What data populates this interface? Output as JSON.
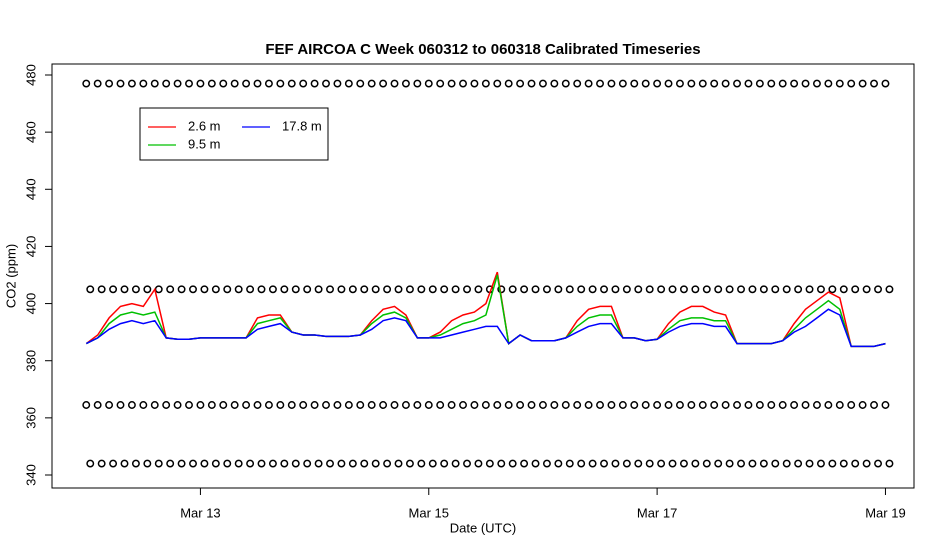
{
  "chart_data": {
    "type": "line",
    "title": "FEF AIRCOA C  Week 060312 to 060318  Calibrated Timeseries",
    "xlabel": "Date (UTC)",
    "ylabel": "CO2 (ppm)",
    "xlim": [
      11.7,
      19.25
    ],
    "ylim": [
      335.45,
      483.85
    ],
    "xticks": [
      {
        "value": 13,
        "label": "Mar 13"
      },
      {
        "value": 15,
        "label": "Mar 15"
      },
      {
        "value": 17,
        "label": "Mar 17"
      },
      {
        "value": 19,
        "label": "Mar 19"
      }
    ],
    "yticks": [
      340,
      360,
      380,
      400,
      420,
      440,
      460,
      480
    ],
    "legend": "topleft",
    "x": [
      12.0,
      12.1,
      12.2,
      12.3,
      12.4,
      12.5,
      12.6,
      12.7,
      12.8,
      12.9,
      13.0,
      13.1,
      13.2,
      13.3,
      13.4,
      13.5,
      13.6,
      13.7,
      13.8,
      13.9,
      14.0,
      14.1,
      14.2,
      14.3,
      14.4,
      14.5,
      14.6,
      14.7,
      14.8,
      14.9,
      15.0,
      15.1,
      15.2,
      15.3,
      15.4,
      15.5,
      15.6,
      15.7,
      15.8,
      15.9,
      16.0,
      16.1,
      16.2,
      16.3,
      16.4,
      16.5,
      16.6,
      16.7,
      16.8,
      16.9,
      17.0,
      17.1,
      17.2,
      17.3,
      17.4,
      17.5,
      17.6,
      17.7,
      17.8,
      17.9,
      18.0,
      18.1,
      18.2,
      18.3,
      18.4,
      18.5,
      18.6,
      18.7,
      18.8,
      18.9,
      19.0
    ],
    "series": [
      {
        "name": "2.6 m",
        "color": "#ff0000",
        "values": [
          386,
          389,
          395,
          399,
          400,
          399,
          405,
          388,
          387.5,
          387.5,
          388,
          388,
          388,
          388,
          388,
          395,
          396,
          396,
          390,
          389,
          389,
          388.5,
          388.5,
          388.5,
          389,
          394,
          398,
          399,
          396,
          388,
          388,
          390,
          394,
          396,
          397,
          400,
          411,
          386,
          389,
          387,
          387,
          387,
          388,
          394,
          398,
          399,
          399,
          388,
          388,
          387,
          387.5,
          393,
          397,
          399,
          399,
          397,
          396,
          386,
          386,
          386,
          386,
          387,
          393,
          398,
          401,
          404,
          402,
          385,
          385,
          385,
          386
        ]
      },
      {
        "name": "9.5 m",
        "color": "#00c000",
        "values": [
          386,
          388,
          393,
          396,
          397,
          396,
          397,
          388,
          387.5,
          387.5,
          388,
          388,
          388,
          388,
          388,
          393,
          394,
          395,
          390,
          389,
          389,
          388.5,
          388.5,
          388.5,
          389,
          393,
          396,
          397,
          395,
          388,
          388,
          389,
          391,
          393,
          394,
          396,
          410,
          386,
          389,
          387,
          387,
          387,
          388,
          392,
          395,
          396,
          396,
          388,
          388,
          387,
          387.5,
          391,
          394,
          395,
          395,
          394,
          394,
          386,
          386,
          386,
          386,
          387,
          391,
          395,
          398,
          401,
          398,
          385,
          385,
          385,
          386
        ]
      },
      {
        "name": "17.8 m",
        "color": "#0000ff",
        "values": [
          386,
          388,
          391,
          393,
          394,
          393,
          394,
          388,
          387.5,
          387.5,
          388,
          388,
          388,
          388,
          388,
          391,
          392,
          393,
          390,
          389,
          389,
          388.5,
          388.5,
          388.5,
          389,
          391,
          394,
          395,
          394,
          388,
          388,
          388,
          389,
          390,
          391,
          392,
          392,
          386,
          389,
          387,
          387,
          387,
          388,
          390,
          392,
          393,
          393,
          388,
          388,
          387,
          387.5,
          390,
          392,
          393,
          393,
          392,
          392,
          386,
          386,
          386,
          386,
          387,
          390,
          392,
          395,
          398,
          396,
          385,
          385,
          385,
          386
        ]
      }
    ],
    "calibration_levels": [
      477,
      405,
      364.5,
      344
    ]
  }
}
